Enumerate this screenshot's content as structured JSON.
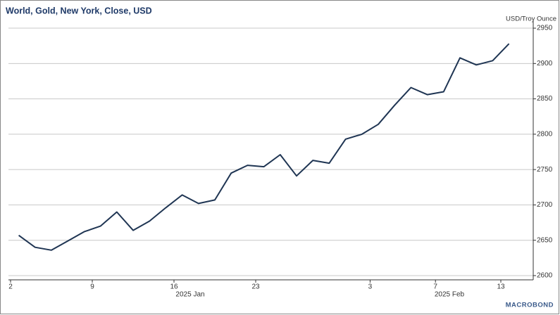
{
  "chart_data": {
    "type": "line",
    "title": "World, Gold, New York, Close, USD",
    "y_axis_label": "USD/Troy Ounce",
    "logo": "MACROBOND",
    "categories": [
      "2",
      null,
      null,
      null,
      null,
      "9",
      null,
      null,
      null,
      null,
      "16",
      null,
      null,
      null,
      null,
      "23",
      null,
      null,
      null,
      null,
      null,
      null,
      "3",
      null,
      null,
      null,
      "7",
      null,
      null,
      null,
      "13"
    ],
    "x_period_labels": [
      "2025 Jan",
      "2025 Feb"
    ],
    "series": [
      {
        "name": "World, Gold, New York, Close, USD",
        "color": "#1f3553",
        "values": [
          2657,
          2640,
          2636,
          2649,
          2662,
          2670,
          2690,
          2664,
          2677,
          2696,
          2714,
          2702,
          2707,
          2745,
          2756,
          2754,
          2771,
          2741,
          2763,
          2759,
          2793,
          2800,
          2814,
          2841,
          2866,
          2856,
          2860,
          2908,
          2898,
          2904,
          2928
        ]
      }
    ],
    "ylim": [
      2594,
      2960
    ],
    "yticks": [
      2600,
      2650,
      2700,
      2750,
      2800,
      2850,
      2900,
      2950
    ],
    "grid": true,
    "y_axis_side": "right"
  }
}
